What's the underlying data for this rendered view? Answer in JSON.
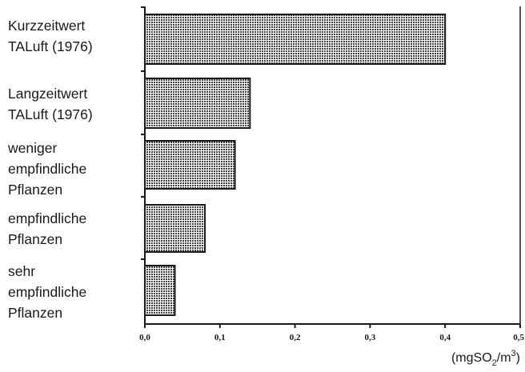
{
  "chart_data": {
    "type": "bar",
    "orientation": "horizontal",
    "categories": [
      [
        "Kurzzeitwert",
        "TALuft (1976)"
      ],
      [
        "Langzeitwert",
        "TALuft (1976)"
      ],
      [
        "weniger",
        "empfindliche",
        "Pflanzen"
      ],
      [
        "empfindliche",
        "Pflanzen"
      ],
      [
        "sehr",
        "empfindliche",
        "Pflanzen"
      ]
    ],
    "values": [
      0.4,
      0.14,
      0.12,
      0.08,
      0.04
    ],
    "xlim": [
      0,
      0.5
    ],
    "xticks": [
      "0,0",
      "0,1",
      "0,2",
      "0,3",
      "0,4",
      "0,5"
    ],
    "unit_label": {
      "prefix": "(mgSO",
      "sub": "2",
      "mid": "/m",
      "sup": "3",
      "suffix": ")"
    },
    "grid": false,
    "bar_fill": "crosshatch",
    "colors": {
      "bar_fill": "#b5b5b5",
      "bar_stroke": "#1a1a1a",
      "axis": "#1a1a1a"
    }
  }
}
